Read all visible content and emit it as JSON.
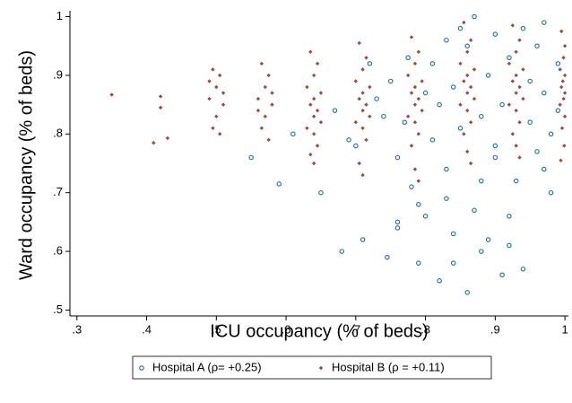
{
  "chart_data": {
    "type": "scatter",
    "xlabel": "ICU occupancy (% of beds)",
    "ylabel": "Ward occupancy (% of beds)",
    "xlim": [
      0.29,
      1.005
    ],
    "ylim": [
      0.49,
      1.01
    ],
    "xticks": [
      {
        "value": 0.3,
        "label": ".3"
      },
      {
        "value": 0.4,
        "label": ".4"
      },
      {
        "value": 0.5,
        "label": ".5"
      },
      {
        "value": 0.6,
        "label": ".6"
      },
      {
        "value": 0.7,
        "label": ".7"
      },
      {
        "value": 0.8,
        "label": ".8"
      },
      {
        "value": 0.9,
        "label": ".9"
      },
      1
    ],
    "yticks": [
      {
        "value": 0.5,
        "label": ".5"
      },
      {
        "value": 0.6,
        "label": ".6"
      },
      {
        "value": 0.7,
        "label": ".7"
      },
      {
        "value": 0.8,
        "label": ".8"
      },
      {
        "value": 0.9,
        "label": ".9"
      },
      1
    ],
    "legend": "bottom",
    "series": [
      {
        "name": "Hospital A (ρ= +0.25)",
        "color": "#1f6e8f",
        "marker": "circle",
        "x": [
          0.55,
          0.59,
          0.61,
          0.65,
          0.67,
          0.68,
          0.69,
          0.7,
          0.71,
          0.72,
          0.73,
          0.74,
          0.745,
          0.75,
          0.76,
          0.76,
          0.77,
          0.775,
          0.78,
          0.79,
          0.8,
          0.8,
          0.81,
          0.81,
          0.82,
          0.82,
          0.83,
          0.83,
          0.84,
          0.84,
          0.85,
          0.85,
          0.86,
          0.86,
          0.87,
          0.87,
          0.88,
          0.88,
          0.89,
          0.89,
          0.9,
          0.9,
          0.91,
          0.91,
          0.92,
          0.92,
          0.93,
          0.94,
          0.94,
          0.95,
          0.95,
          0.96,
          0.96,
          0.97,
          0.97,
          0.98,
          0.98,
          0.99,
          0.99,
          0.76,
          0.83,
          0.88,
          0.92,
          0.97,
          0.79,
          0.84,
          0.9
        ],
        "values": [
          0.76,
          0.715,
          0.8,
          0.7,
          0.84,
          0.6,
          0.79,
          0.78,
          0.62,
          0.92,
          0.86,
          0.83,
          0.59,
          0.89,
          0.76,
          0.65,
          0.82,
          0.93,
          0.71,
          0.58,
          0.87,
          0.66,
          0.79,
          0.92,
          0.55,
          0.85,
          0.74,
          0.96,
          0.58,
          0.88,
          0.81,
          0.98,
          0.95,
          0.53,
          0.67,
          1.0,
          0.83,
          0.72,
          0.62,
          0.9,
          0.97,
          0.78,
          0.56,
          0.85,
          0.93,
          0.61,
          0.72,
          0.98,
          0.57,
          0.82,
          0.89,
          0.95,
          0.77,
          0.87,
          0.99,
          0.8,
          0.7,
          0.92,
          0.84,
          0.64,
          0.69,
          0.6,
          0.66,
          0.74,
          0.68,
          0.63,
          0.76
        ]
      },
      {
        "name": "Hospital B (ρ = +0.11)",
        "color": "#9c4848",
        "marker": "diamond",
        "x": [
          0.35,
          0.42,
          0.42,
          0.41,
          0.43,
          0.495,
          0.505,
          0.5,
          0.49,
          0.51,
          0.5,
          0.495,
          0.505,
          0.51,
          0.49,
          0.565,
          0.575,
          0.57,
          0.56,
          0.58,
          0.57,
          0.565,
          0.575,
          0.58,
          0.56,
          0.635,
          0.645,
          0.64,
          0.63,
          0.65,
          0.64,
          0.635,
          0.645,
          0.64,
          0.65,
          0.63,
          0.64,
          0.645,
          0.64,
          0.635,
          0.705,
          0.715,
          0.71,
          0.7,
          0.72,
          0.71,
          0.705,
          0.715,
          0.71,
          0.72,
          0.7,
          0.71,
          0.715,
          0.705,
          0.71,
          0.78,
          0.79,
          0.785,
          0.775,
          0.795,
          0.785,
          0.78,
          0.79,
          0.785,
          0.795,
          0.775,
          0.785,
          0.79,
          0.78,
          0.785,
          0.79,
          0.855,
          0.865,
          0.86,
          0.85,
          0.87,
          0.86,
          0.855,
          0.865,
          0.86,
          0.87,
          0.85,
          0.86,
          0.865,
          0.855,
          0.86,
          0.865,
          0.925,
          0.935,
          0.93,
          0.92,
          0.94,
          0.93,
          0.925,
          0.935,
          0.93,
          0.94,
          0.92,
          0.93,
          0.935,
          0.925,
          0.93,
          0.935,
          0.995,
          1.0,
          0.998,
          0.993,
          1.0,
          0.997,
          0.995,
          1.0,
          0.998,
          0.993,
          1.0,
          0.996,
          0.999,
          0.994
        ],
        "values": [
          0.867,
          0.864,
          0.845,
          0.785,
          0.793,
          0.91,
          0.9,
          0.88,
          0.86,
          0.85,
          0.83,
          0.81,
          0.8,
          0.87,
          0.89,
          0.92,
          0.9,
          0.88,
          0.86,
          0.85,
          0.83,
          0.81,
          0.79,
          0.87,
          0.84,
          0.94,
          0.92,
          0.9,
          0.88,
          0.87,
          0.86,
          0.85,
          0.84,
          0.83,
          0.82,
          0.81,
          0.8,
          0.78,
          0.75,
          0.765,
          0.955,
          0.93,
          0.91,
          0.89,
          0.88,
          0.87,
          0.86,
          0.85,
          0.84,
          0.83,
          0.82,
          0.81,
          0.79,
          0.75,
          0.73,
          0.965,
          0.94,
          0.92,
          0.9,
          0.89,
          0.88,
          0.87,
          0.86,
          0.85,
          0.84,
          0.83,
          0.82,
          0.8,
          0.78,
          0.74,
          0.72,
          0.99,
          0.96,
          0.94,
          0.92,
          0.91,
          0.9,
          0.89,
          0.88,
          0.87,
          0.86,
          0.85,
          0.84,
          0.82,
          0.8,
          0.77,
          0.75,
          0.985,
          0.96,
          0.94,
          0.92,
          0.91,
          0.9,
          0.89,
          0.88,
          0.87,
          0.86,
          0.85,
          0.84,
          0.82,
          0.8,
          0.78,
          0.76,
          0.975,
          0.95,
          0.93,
          0.91,
          0.9,
          0.89,
          0.88,
          0.87,
          0.86,
          0.85,
          0.83,
          0.81,
          0.78,
          0.755
        ]
      }
    ]
  }
}
